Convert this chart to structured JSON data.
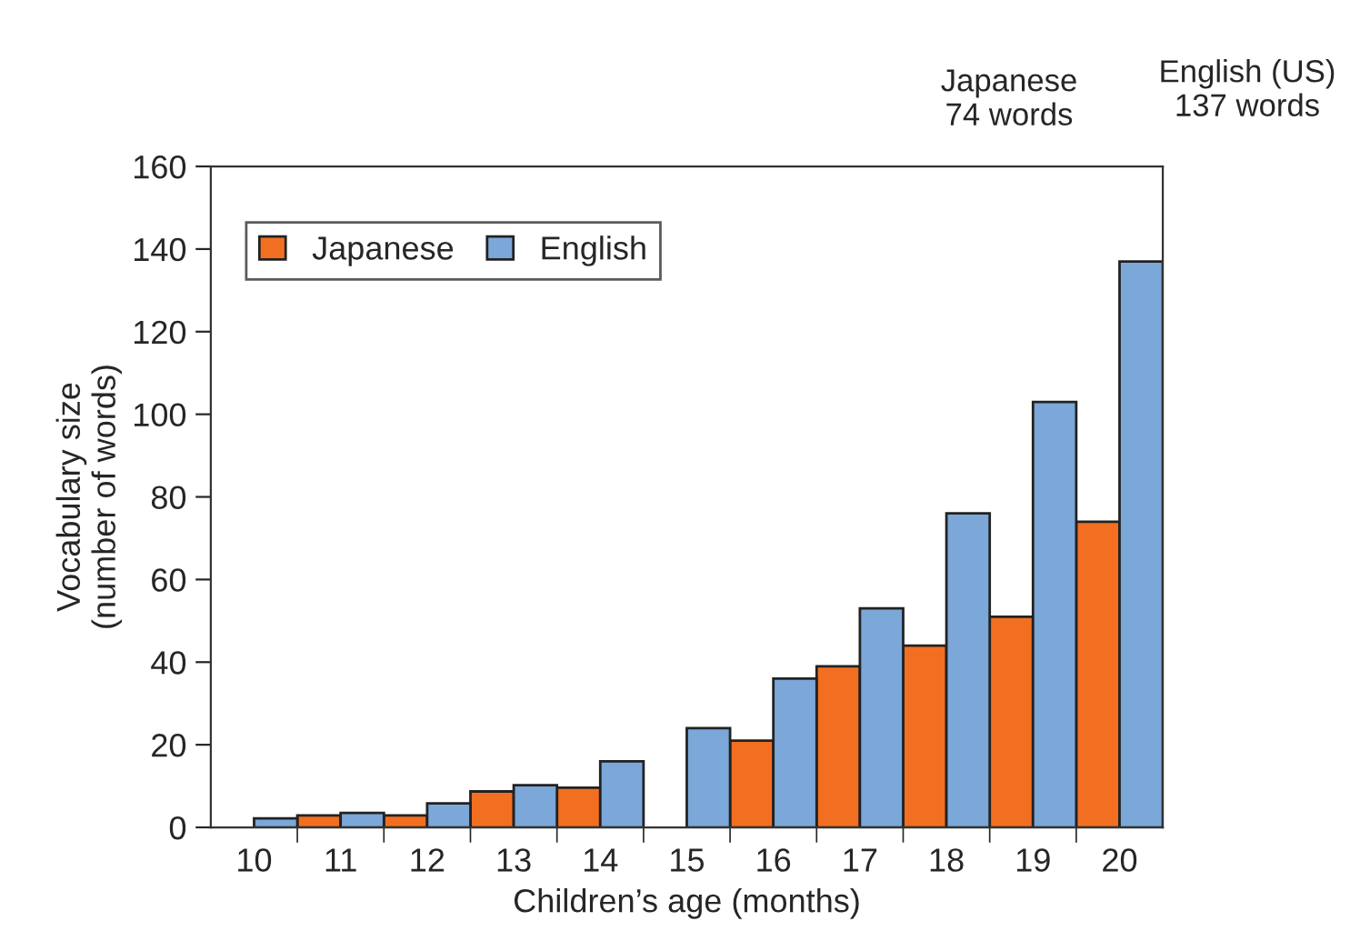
{
  "chart_data": {
    "type": "bar",
    "xlabel": "Children’s age (months)",
    "ylabel": "Vocabulary size\n(number of words)",
    "categories": [
      "10",
      "11",
      "12",
      "13",
      "14",
      "15",
      "16",
      "17",
      "18",
      "19",
      "20"
    ],
    "series": [
      {
        "name": "Japanese",
        "color": "#f26f21",
        "values": [
          null,
          2.9,
          2.9,
          8.7,
          9.6,
          null,
          21,
          39,
          44,
          51,
          74
        ]
      },
      {
        "name": "English",
        "color": "#7ba7d9",
        "values": [
          2.2,
          3.5,
          5.8,
          10.2,
          16,
          24,
          36,
          53,
          76,
          103,
          137
        ]
      }
    ],
    "ylim": [
      0,
      160
    ],
    "yticks": [
      0,
      20,
      40,
      60,
      80,
      100,
      120,
      140,
      160
    ],
    "legend": "top left",
    "grid": false,
    "annotations": [
      "Japanese\n74 words",
      "English (US)\n137 words"
    ]
  }
}
